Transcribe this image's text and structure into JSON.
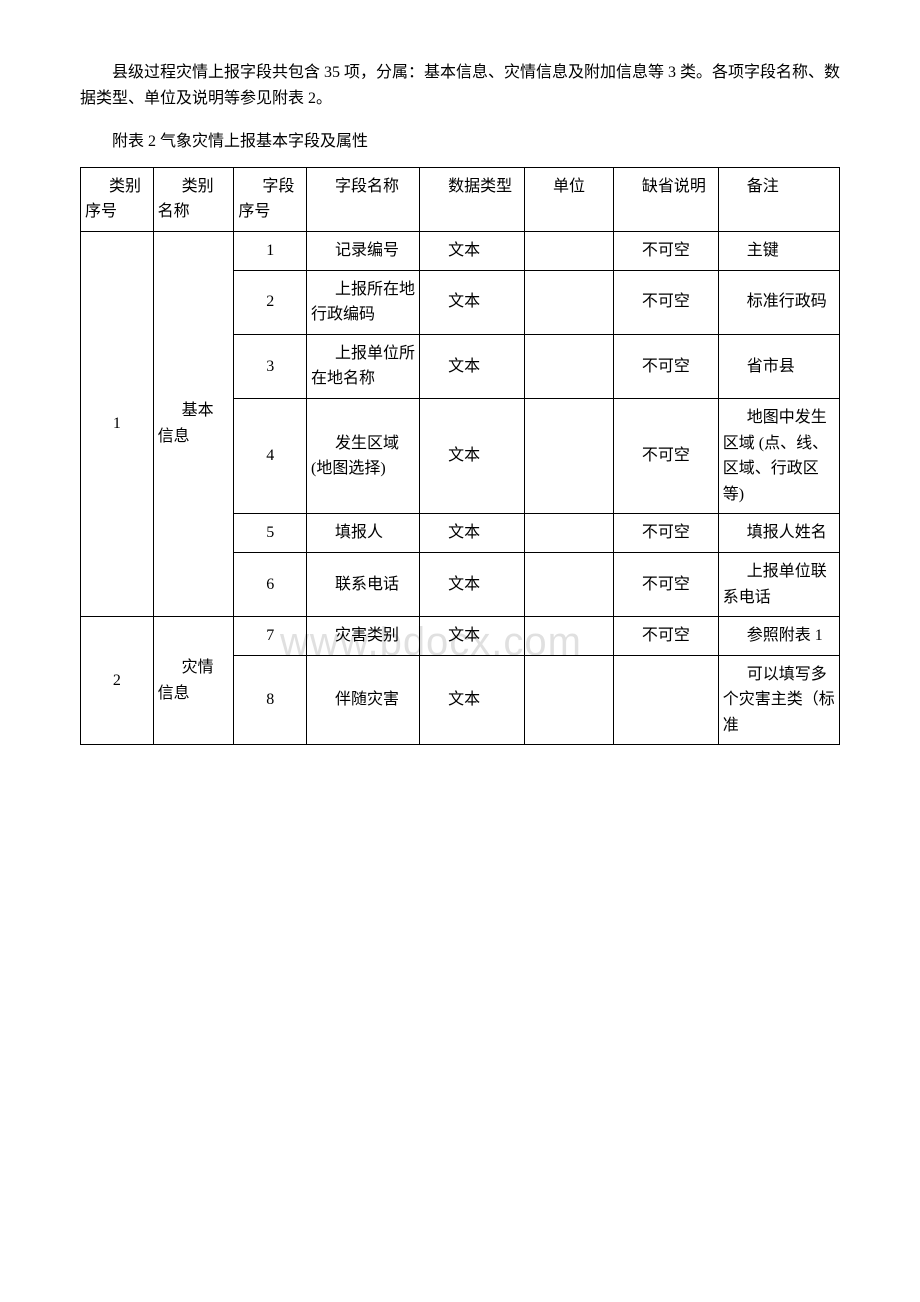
{
  "intro": "县级过程灾情上报字段共包含 35 项，分属：基本信息、灾情信息及附加信息等 3 类。各项字段名称、数据类型、单位及说明等参见附表 2。",
  "table_caption": "附表 2 气象灾情上报基本字段及属性",
  "watermark": "www.bdocx.com",
  "headers": {
    "cat_no": "类别序号",
    "cat_name": "类别名称",
    "field_no": "字段序号",
    "field_name": "字段名称",
    "data_type": "数据类型",
    "unit": "单位",
    "null_desc": "缺省说明",
    "remark": "备注"
  },
  "categories": [
    {
      "cat_no": "1",
      "cat_name": "基本信息",
      "rows": [
        {
          "no": "1",
          "name": "记录编号",
          "type": "文本",
          "unit": "",
          "null": "不可空",
          "remark": "主键"
        },
        {
          "no": "2",
          "name": "上报所在地行政编码",
          "type": "文本",
          "unit": "",
          "null": "不可空",
          "remark": "标准行政码"
        },
        {
          "no": "3",
          "name": "上报单位所在地名称",
          "type": "文本",
          "unit": "",
          "null": "不可空",
          "remark": "省市县"
        },
        {
          "no": "4",
          "name": "发生区域 (地图选择)",
          "type": "文本",
          "unit": "",
          "null": "不可空",
          "remark": "地图中发生区域 (点、线、区域、行政区等)"
        },
        {
          "no": "5",
          "name": "填报人",
          "type": "文本",
          "unit": "",
          "null": "不可空",
          "remark": "填报人姓名"
        },
        {
          "no": "6",
          "name": "联系电话",
          "type": "文本",
          "unit": "",
          "null": "不可空",
          "remark": "上报单位联系电话"
        }
      ]
    },
    {
      "cat_no": "2",
      "cat_name": "灾情信息",
      "rows": [
        {
          "no": "7",
          "name": "灾害类别",
          "type": "文本",
          "unit": "",
          "null": "不可空",
          "remark": "参照附表 1"
        },
        {
          "no": "8",
          "name": "伴随灾害",
          "type": "文本",
          "unit": "",
          "null": "",
          "remark": "可以填写多个灾害主类（标准"
        }
      ]
    }
  ]
}
